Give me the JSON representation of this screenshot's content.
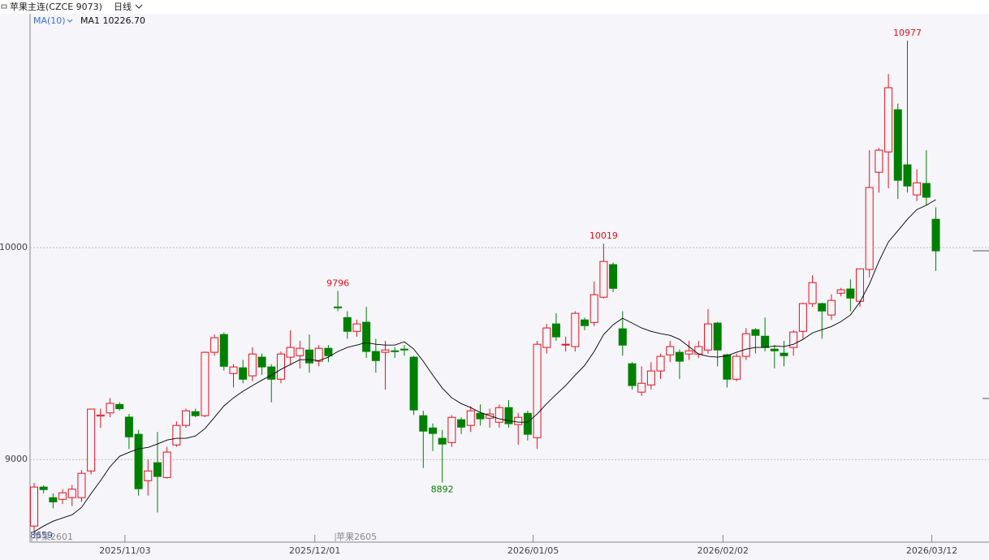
{
  "chart_data": {
    "type": "candlestick",
    "title": "苹果主连(CZCE 9073)",
    "period": "日线",
    "indicator": "MA(10)",
    "indicator_value_label": "MA1 10226.70",
    "contracts": [
      "苹果2601",
      "苹果2605"
    ],
    "up_color": "#e8101c",
    "down_color": "#008000",
    "ma_color": "#000000",
    "ylim": [
      8610,
      11100
    ],
    "yticks": [
      9000,
      10000
    ],
    "grid": true,
    "categories": [
      null,
      null,
      null,
      null,
      null,
      null,
      null,
      null,
      null,
      null,
      "2025/11/03",
      null,
      null,
      null,
      null,
      null,
      null,
      null,
      null,
      null,
      null,
      null,
      null,
      null,
      null,
      null,
      null,
      null,
      null,
      null,
      "2025/12/01",
      null,
      null,
      null,
      null,
      null,
      null,
      null,
      null,
      null,
      null,
      null,
      null,
      null,
      null,
      null,
      null,
      null,
      null,
      null,
      null,
      null,
      null,
      "2026/01/05",
      null,
      null,
      null,
      null,
      null,
      null,
      null,
      null,
      null,
      null,
      null,
      null,
      null,
      null,
      null,
      null,
      null,
      null,
      null,
      "2026/02/02",
      null,
      null,
      null,
      null,
      null,
      null,
      null,
      null,
      null,
      null,
      null,
      null,
      null,
      null,
      null,
      null,
      null,
      null,
      null,
      null,
      null,
      "2026/03/12"
    ],
    "open": [
      8686,
      8870,
      8820,
      8812,
      8820,
      8820,
      8946,
      9205,
      9220,
      9260,
      9200,
      9119,
      8900,
      8985,
      8915,
      9069,
      9161,
      9226,
      9207,
      9506,
      9590,
      9406,
      9433,
      9395,
      9483,
      9437,
      9379,
      9483,
      9490,
      9517,
      9464,
      9525,
      9720,
      9670,
      9605,
      9648,
      9510,
      9506,
      9513,
      9521,
      9483,
      9207,
      9149,
      9100,
      9080,
      9188,
      9161,
      9218,
      9195,
      9176,
      9245,
      9165,
      9218,
      9103,
      9529,
      9640,
      9540,
      9533,
      9659,
      9647,
      9766,
      9920,
      9617,
      9452,
      9318,
      9352,
      9418,
      9494,
      9506,
      9498,
      9498,
      9517,
      9644,
      9494,
      9379,
      9487,
      9613,
      9582,
      9521,
      9502,
      9529,
      9605,
      9736,
      9736,
      9682,
      9785,
      9805,
      9747,
      9897,
      10356,
      10452,
      10651,
      10391,
      10249,
      10303,
      10134
    ],
    "high": [
      8889,
      8878,
      8840,
      8860,
      8880,
      8950,
      9240,
      9240,
      9290,
      9270,
      9215,
      9140,
      9000,
      9130,
      9060,
      9180,
      9240,
      9240,
      9510,
      9590,
      9600,
      9450,
      9470,
      9530,
      9500,
      9450,
      9510,
      9610,
      9560,
      9590,
      9540,
      9540,
      9796,
      9700,
      9660,
      9720,
      9570,
      9560,
      9530,
      9540,
      9490,
      9230,
      9170,
      9140,
      9210,
      9200,
      9250,
      9260,
      9240,
      9260,
      9280,
      9220,
      9230,
      9560,
      9640,
      9690,
      9580,
      9700,
      9670,
      9840,
      10019,
      9930,
      9700,
      9460,
      9440,
      9460,
      9500,
      9560,
      9520,
      9560,
      9560,
      9710,
      9650,
      9500,
      9500,
      9620,
      9620,
      9670,
      9540,
      9560,
      9610,
      9740,
      9870,
      9740,
      9780,
      9810,
      9850,
      9900,
      10460,
      10470,
      10820,
      10680,
      10977,
      10370,
      10460,
      10190
    ],
    "low": [
      8659,
      8840,
      8770,
      8790,
      8780,
      8800,
      8930,
      9150,
      9200,
      9230,
      9050,
      8830,
      8830,
      8750,
      8910,
      9060,
      9150,
      9200,
      9200,
      9490,
      9420,
      9340,
      9360,
      9370,
      9400,
      9270,
      9360,
      9450,
      9430,
      9410,
      9440,
      9460,
      9700,
      9570,
      9580,
      9480,
      9410,
      9330,
      9480,
      9490,
      9210,
      8960,
      9040,
      8892,
      9060,
      9120,
      9130,
      9160,
      9150,
      9150,
      9150,
      9070,
      9090,
      9050,
      9500,
      9560,
      9510,
      9510,
      9610,
      9630,
      9760,
      9790,
      9490,
      9330,
      9300,
      9330,
      9380,
      9460,
      9380,
      9470,
      9480,
      9500,
      9440,
      9340,
      9370,
      9470,
      9500,
      9510,
      9430,
      9440,
      9490,
      9570,
      9720,
      9570,
      9660,
      9770,
      9700,
      9720,
      9860,
      10260,
      10280,
      10230,
      10260,
      10220,
      10200,
      9890
    ],
    "close": [
      8870,
      8858,
      8800,
      8843,
      8860,
      8935,
      9238,
      9210,
      9265,
      9240,
      9107,
      8862,
      8946,
      8920,
      9035,
      9161,
      9230,
      9207,
      9506,
      9575,
      9440,
      9437,
      9379,
      9498,
      9437,
      9379,
      9498,
      9529,
      9525,
      9456,
      9525,
      9490,
      9716,
      9605,
      9640,
      9510,
      9467,
      9517,
      9510,
      9518,
      9234,
      9134,
      9123,
      9073,
      9199,
      9153,
      9230,
      9192,
      9215,
      9245,
      9169,
      9199,
      9119,
      9544,
      9621,
      9579,
      9544,
      9690,
      9632,
      9778,
      9935,
      9808,
      9540,
      9349,
      9360,
      9418,
      9487,
      9533,
      9464,
      9513,
      9533,
      9640,
      9517,
      9379,
      9487,
      9594,
      9586,
      9529,
      9513,
      9490,
      9602,
      9736,
      9835,
      9701,
      9751,
      9801,
      9762,
      9900,
      10284,
      10460,
      10755,
      10318,
      10291,
      10306,
      10238,
      9985
    ],
    "ma": [
      8659,
      8686,
      8709,
      8724,
      8739,
      8774,
      8839,
      8900,
      8966,
      9015,
      9034,
      9050,
      9057,
      9073,
      9092,
      9100,
      9100,
      9111,
      9146,
      9199,
      9253,
      9291,
      9322,
      9349,
      9375,
      9398,
      9425,
      9448,
      9471,
      9471,
      9467,
      9483,
      9510,
      9529,
      9540,
      9552,
      9544,
      9540,
      9540,
      9556,
      9521,
      9464,
      9398,
      9337,
      9291,
      9264,
      9245,
      9222,
      9207,
      9192,
      9184,
      9176,
      9176,
      9215,
      9264,
      9307,
      9349,
      9398,
      9444,
      9510,
      9590,
      9636,
      9667,
      9644,
      9621,
      9605,
      9594,
      9586,
      9567,
      9533,
      9498,
      9487,
      9483,
      9490,
      9506,
      9521,
      9529,
      9529,
      9536,
      9533,
      9544,
      9567,
      9598,
      9613,
      9628,
      9651,
      9682,
      9743,
      9828,
      9935,
      10027,
      10080,
      10134,
      10180,
      10200,
      10226.7
    ]
  }
}
